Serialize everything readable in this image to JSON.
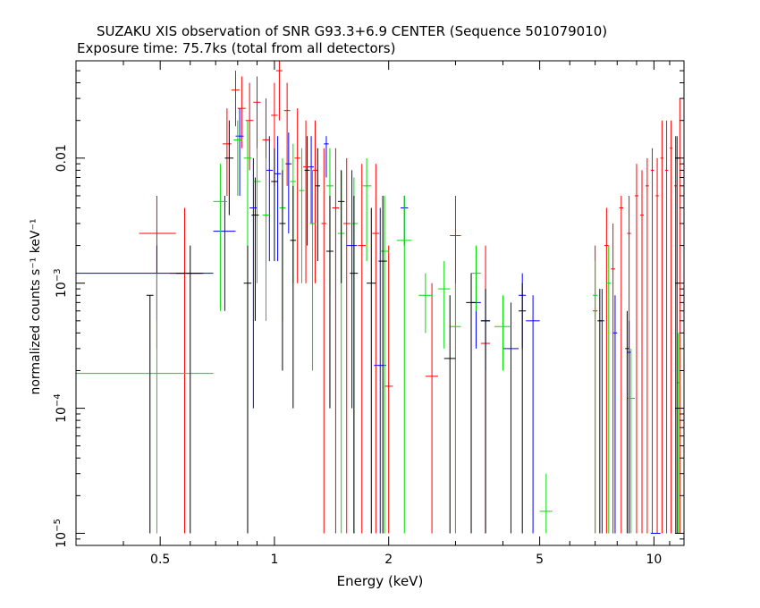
{
  "chart_data": {
    "type": "scatter",
    "title": "SUZAKU XIS observation of SNR G93.3+6.9 CENTER (Sequence 501079010)",
    "subtitle": "Exposure time: 75.7ks (total from all detectors)",
    "xlabel": "Energy (keV)",
    "ylabel": "normalized counts s⁻¹ keV⁻¹",
    "x_scale": "log",
    "y_scale": "log",
    "xlim": [
      0.3,
      12
    ],
    "ylim": [
      8e-06,
      0.06
    ],
    "x_ticks": [
      {
        "value": 0.5,
        "label": "0.5"
      },
      {
        "value": 1,
        "label": "1"
      },
      {
        "value": 2,
        "label": "2"
      },
      {
        "value": 5,
        "label": "5"
      },
      {
        "value": 10,
        "label": "10"
      }
    ],
    "y_ticks": [
      {
        "value": 1e-05,
        "base": "10",
        "exp": "−5"
      },
      {
        "value": 0.0001,
        "base": "10",
        "exp": "−4"
      },
      {
        "value": 0.001,
        "base": "10",
        "exp": "−3"
      },
      {
        "value": 0.01,
        "base": "0.01",
        "exp": ""
      }
    ],
    "grid": false,
    "legend": "none",
    "series": [
      {
        "color": "#ff0000",
        "points": [
          [
            0.49,
            0.0025,
            0.44,
            0.55,
            0.0003,
            0.005
          ],
          [
            0.58,
            0.0012,
            0.53,
            0.64,
            1e-05,
            0.004
          ],
          [
            0.75,
            0.013,
            0.73,
            0.77,
            0.005,
            0.025
          ],
          [
            0.79,
            0.035,
            0.77,
            0.81,
            0.018,
            0.05
          ],
          [
            0.82,
            0.025,
            0.8,
            0.84,
            0.012,
            0.045
          ],
          [
            0.86,
            0.02,
            0.84,
            0.88,
            0.008,
            0.04
          ],
          [
            0.9,
            0.028,
            0.88,
            0.92,
            0.01,
            0.045
          ],
          [
            0.95,
            0.014,
            0.93,
            0.97,
            0.003,
            0.03
          ],
          [
            1.0,
            0.022,
            0.98,
            1.02,
            0.006,
            0.04
          ],
          [
            1.03,
            0.05,
            1.01,
            1.05,
            0.02,
            0.06
          ],
          [
            1.08,
            0.024,
            1.06,
            1.1,
            0.006,
            0.04
          ],
          [
            1.15,
            0.01,
            1.13,
            1.17,
            0.001,
            0.025
          ],
          [
            1.21,
            0.0085,
            1.19,
            1.23,
            0.001,
            0.02
          ],
          [
            1.28,
            0.008,
            1.26,
            1.3,
            0.001,
            0.02
          ],
          [
            1.35,
            0.003,
            1.33,
            1.37,
            1e-05,
            0.012
          ],
          [
            1.45,
            0.004,
            1.42,
            1.48,
            1e-05,
            0.012
          ],
          [
            1.55,
            0.003,
            1.52,
            1.58,
            1e-05,
            0.01
          ],
          [
            1.7,
            0.002,
            1.66,
            1.74,
            1e-05,
            0.009
          ],
          [
            1.85,
            0.0025,
            1.81,
            1.89,
            1e-05,
            0.009
          ],
          [
            2.0,
            0.00015,
            1.95,
            2.05,
            1e-05,
            0.002
          ],
          [
            2.6,
            0.00018,
            2.5,
            2.7,
            1e-05,
            0.001
          ],
          [
            3.0,
            0.0024,
            2.9,
            3.1,
            1e-05,
            0.005
          ],
          [
            3.6,
            0.00033,
            3.5,
            3.7,
            1e-05,
            0.002
          ],
          [
            7.0,
            0.0006,
            6.9,
            7.1,
            1e-05,
            0.002
          ],
          [
            7.5,
            0.002,
            7.4,
            7.6,
            1e-05,
            0.004
          ],
          [
            7.8,
            0.0013,
            7.7,
            7.9,
            1e-05,
            0.003
          ],
          [
            8.2,
            0.004,
            8.1,
            8.3,
            1e-05,
            0.005
          ],
          [
            8.6,
            0.0025,
            8.5,
            8.7,
            1e-05,
            0.005
          ],
          [
            9.0,
            0.005,
            8.9,
            9.1,
            1e-05,
            0.009
          ],
          [
            9.3,
            0.0035,
            9.2,
            9.4,
            1e-05,
            0.008
          ],
          [
            9.6,
            0.006,
            9.5,
            9.7,
            1e-05,
            0.01
          ],
          [
            9.9,
            0.008,
            9.8,
            10.0,
            1e-05,
            0.012
          ],
          [
            10.2,
            0.005,
            10.1,
            10.3,
            1e-05,
            0.01
          ],
          [
            10.5,
            0.01,
            10.4,
            10.6,
            1e-05,
            0.02
          ],
          [
            10.8,
            0.008,
            10.7,
            10.9,
            1e-05,
            0.02
          ],
          [
            11.1,
            0.012,
            11.0,
            11.2,
            1e-05,
            0.02
          ],
          [
            11.4,
            0.006,
            11.3,
            11.5,
            1e-05,
            0.015
          ],
          [
            11.7,
            0.01,
            11.6,
            11.8,
            1e-05,
            0.03
          ]
        ]
      },
      {
        "color": "#0000ff",
        "points": [
          [
            0.49,
            0.0012,
            0.3,
            0.69,
            0.0005,
            0.002
          ],
          [
            0.74,
            0.0026,
            0.69,
            0.79,
            0.0006,
            0.005
          ],
          [
            0.81,
            0.015,
            0.79,
            0.83,
            0.005,
            0.025
          ],
          [
            0.88,
            0.004,
            0.86,
            0.9,
            0.0001,
            0.01
          ],
          [
            0.97,
            0.008,
            0.95,
            0.99,
            0.0015,
            0.015
          ],
          [
            1.02,
            0.0075,
            1.0,
            1.04,
            0.0015,
            0.015
          ],
          [
            1.09,
            0.009,
            1.07,
            1.11,
            0.0025,
            0.016
          ],
          [
            1.25,
            0.0085,
            1.23,
            1.27,
            0.003,
            0.015
          ],
          [
            1.37,
            0.013,
            1.35,
            1.39,
            0.007,
            0.015
          ],
          [
            1.6,
            0.002,
            1.55,
            1.65,
            0.0001,
            0.008
          ],
          [
            1.9,
            0.00022,
            1.83,
            1.97,
            1e-05,
            0.004
          ],
          [
            2.2,
            0.004,
            2.15,
            2.25,
            0.002,
            0.005
          ],
          [
            3.4,
            0.0007,
            3.3,
            3.5,
            0.0003,
            0.0012
          ],
          [
            3.6,
            0.0005,
            3.5,
            3.7,
            0.0002,
            0.0009
          ],
          [
            4.2,
            0.0003,
            4.0,
            4.4,
            1e-05,
            0.0007
          ],
          [
            4.5,
            0.0008,
            4.4,
            4.6,
            0.0003,
            0.0012
          ],
          [
            4.8,
            0.0005,
            4.6,
            5.0,
            1e-05,
            0.0008
          ],
          [
            7.3,
            0.0005,
            7.2,
            7.4,
            1e-05,
            0.0009
          ],
          [
            7.9,
            0.0004,
            7.8,
            8.0,
            1e-05,
            0.0008
          ],
          [
            8.6,
            0.00028,
            8.5,
            8.7,
            1e-05,
            0.0005
          ],
          [
            10.0,
            1e-05,
            9.8,
            10.4,
            1e-05,
            1e-05
          ]
        ]
      },
      {
        "color": "#00dd00",
        "points": [
          [
            0.49,
            0.00019,
            0.3,
            0.69,
            1e-05,
            0.0012
          ],
          [
            0.72,
            0.0045,
            0.69,
            0.75,
            0.0006,
            0.009
          ],
          [
            0.8,
            0.014,
            0.78,
            0.82,
            0.005,
            0.02
          ],
          [
            0.85,
            0.01,
            0.83,
            0.87,
            0.002,
            0.02
          ],
          [
            0.9,
            0.0065,
            0.88,
            0.92,
            0.001,
            0.012
          ],
          [
            0.95,
            0.0035,
            0.93,
            0.97,
            0.0005,
            0.01
          ],
          [
            1.05,
            0.004,
            1.03,
            1.07,
            0.0005,
            0.01
          ],
          [
            1.12,
            0.0065,
            1.1,
            1.14,
            0.001,
            0.013
          ],
          [
            1.18,
            0.0055,
            1.16,
            1.2,
            0.001,
            0.012
          ],
          [
            1.26,
            0.003,
            1.24,
            1.28,
            0.0002,
            0.008
          ],
          [
            1.4,
            0.006,
            1.37,
            1.43,
            0.0008,
            0.012
          ],
          [
            1.5,
            0.0025,
            1.47,
            1.53,
            1e-05,
            0.008
          ],
          [
            1.62,
            0.003,
            1.58,
            1.66,
            1e-05,
            0.007
          ],
          [
            1.75,
            0.006,
            1.7,
            1.8,
            0.0015,
            0.01
          ],
          [
            1.95,
            0.0018,
            1.9,
            2.0,
            1e-05,
            0.005
          ],
          [
            2.2,
            0.0022,
            2.1,
            2.3,
            1e-05,
            0.005
          ],
          [
            2.5,
            0.0008,
            2.4,
            2.6,
            0.0004,
            0.0012
          ],
          [
            2.8,
            0.0009,
            2.7,
            2.9,
            0.0003,
            0.0015
          ],
          [
            3.0,
            0.00045,
            2.9,
            3.1,
            1e-05,
            0.001
          ],
          [
            3.4,
            0.0012,
            3.3,
            3.5,
            0.0006,
            0.002
          ],
          [
            4.0,
            0.00045,
            3.8,
            4.2,
            0.0002,
            0.0008
          ],
          [
            5.2,
            1.5e-05,
            5.0,
            5.4,
            1e-05,
            3e-05
          ],
          [
            7.0,
            0.0008,
            6.9,
            7.1,
            1e-05,
            0.0015
          ],
          [
            7.6,
            0.001,
            7.5,
            7.7,
            1e-05,
            0.002
          ],
          [
            8.7,
            0.00012,
            8.5,
            8.9,
            1e-05,
            0.0003
          ],
          [
            11.6,
            0.00016,
            11.5,
            11.7,
            1e-05,
            0.0004
          ]
        ]
      },
      {
        "color": "#000000",
        "points": [
          [
            0.47,
            0.0008,
            0.46,
            0.48,
            1e-05,
            0.0008
          ],
          [
            0.6,
            0.0012,
            0.55,
            0.65,
            1e-05,
            0.002
          ],
          [
            0.76,
            0.01,
            0.74,
            0.78,
            0.0035,
            0.02
          ],
          [
            0.85,
            0.001,
            0.83,
            0.87,
            1e-05,
            0.002
          ],
          [
            0.89,
            0.0035,
            0.87,
            0.91,
            0.0005,
            0.007
          ],
          [
            1.0,
            0.0065,
            0.98,
            1.02,
            0.0015,
            0.012
          ],
          [
            1.05,
            0.003,
            1.03,
            1.07,
            0.0002,
            0.008
          ],
          [
            1.12,
            0.0022,
            1.1,
            1.14,
            0.0001,
            0.006
          ],
          [
            1.22,
            0.008,
            1.2,
            1.24,
            0.002,
            0.015
          ],
          [
            1.3,
            0.006,
            1.28,
            1.32,
            0.0015,
            0.012
          ],
          [
            1.4,
            0.0018,
            1.37,
            1.43,
            0.0001,
            0.005
          ],
          [
            1.5,
            0.0045,
            1.47,
            1.53,
            0.001,
            0.008
          ],
          [
            1.62,
            0.0012,
            1.58,
            1.66,
            1e-05,
            0.005
          ],
          [
            1.8,
            0.001,
            1.75,
            1.85,
            1e-05,
            0.004
          ],
          [
            1.93,
            0.0015,
            1.88,
            1.98,
            1e-05,
            0.005
          ],
          [
            2.9,
            0.00025,
            2.8,
            3.0,
            1e-05,
            0.0008
          ],
          [
            3.3,
            0.0007,
            3.2,
            3.4,
            1e-05,
            0.0012
          ],
          [
            3.6,
            0.0005,
            3.5,
            3.7,
            1e-05,
            0.0009
          ],
          [
            4.5,
            0.0006,
            4.4,
            4.6,
            1e-05,
            0.001
          ],
          [
            7.2,
            0.0005,
            7.1,
            7.3,
            1e-05,
            0.0009
          ],
          [
            8.5,
            0.0003,
            8.4,
            8.6,
            1e-05,
            0.0006
          ],
          [
            11.5,
            0.01,
            11.4,
            11.6,
            1e-05,
            0.015
          ]
        ]
      }
    ]
  }
}
